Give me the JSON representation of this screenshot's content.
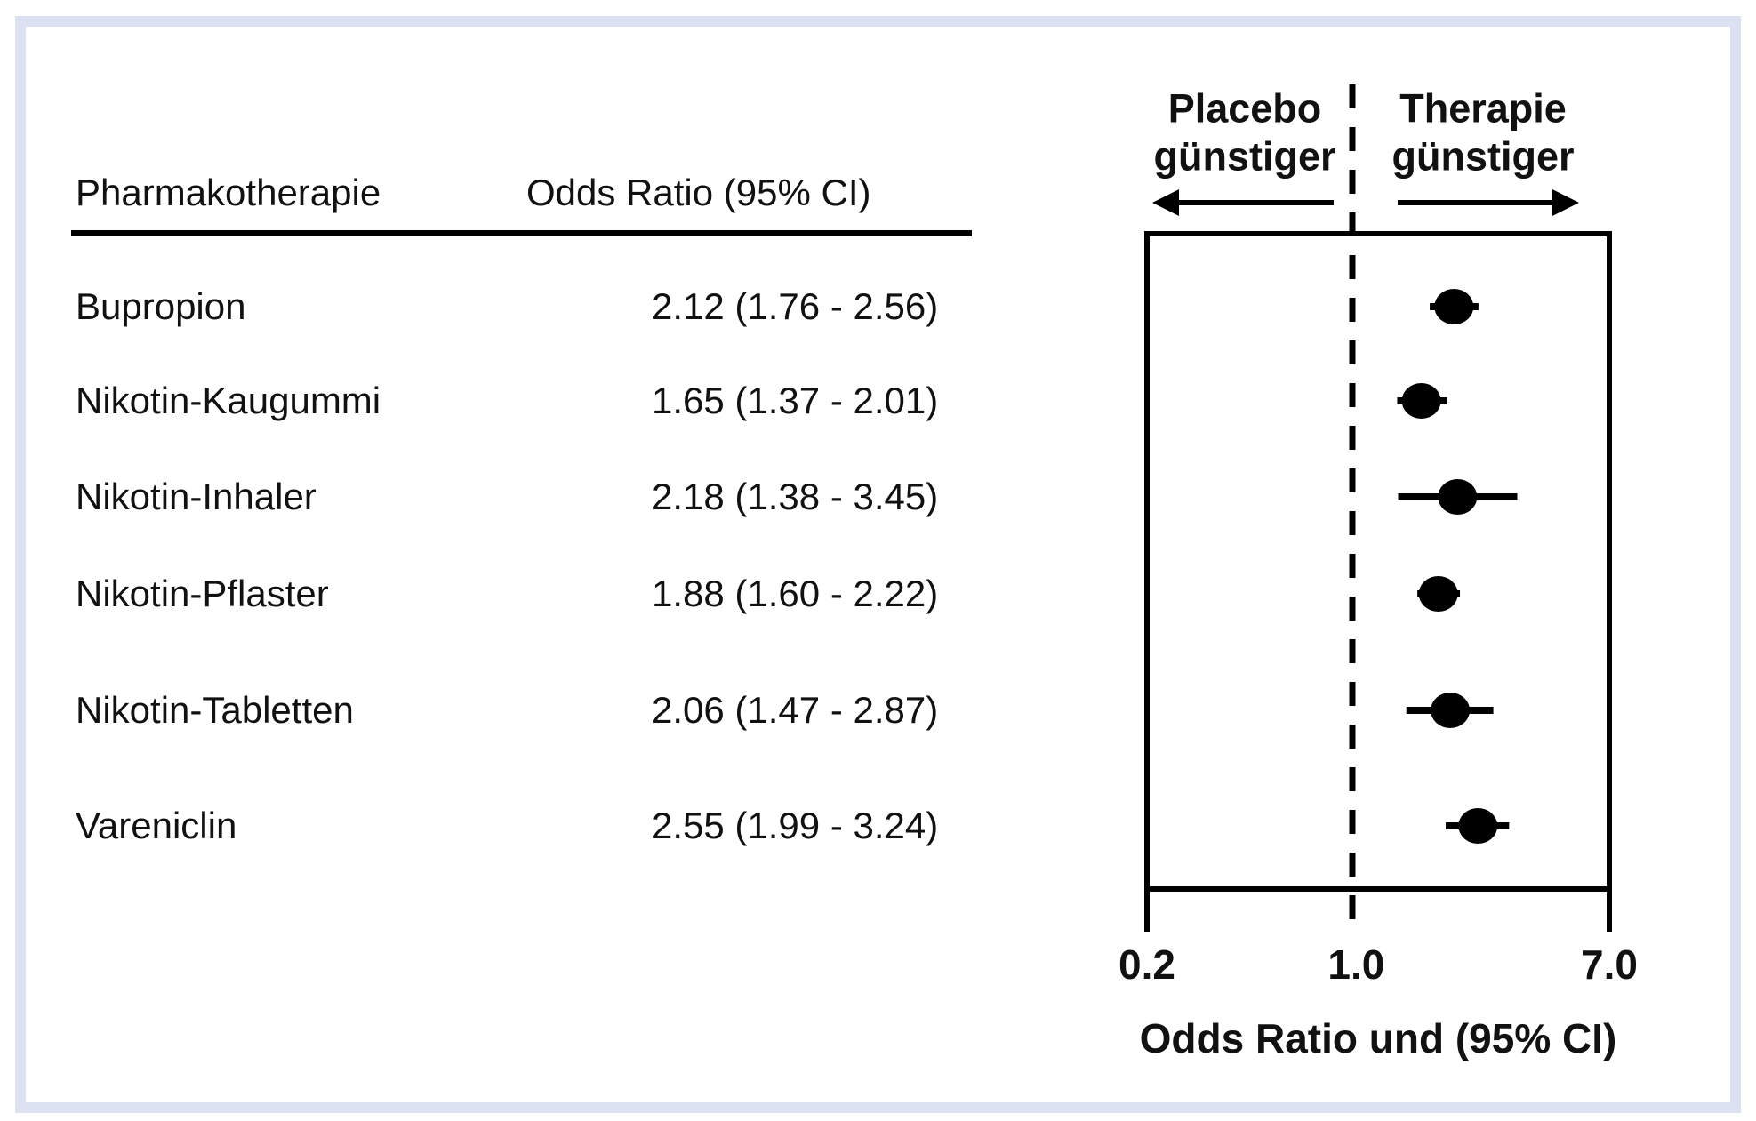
{
  "colors": {
    "frame_border": "#dde2f2",
    "text": "#111111",
    "plot_ink": "#000000",
    "background": "#ffffff"
  },
  "chart_data": {
    "type": "forest",
    "x_scale": "log",
    "x_range": [
      0.2,
      7.0
    ],
    "x_tick_values": [
      0.2,
      1.0,
      7.0
    ],
    "x_tick_labels": [
      "0.2",
      "1.0",
      "7.0"
    ],
    "reference_line": 1.0,
    "x_axis_title": "Odds Ratio und (95% CI)",
    "column_headers": {
      "treatment": "Pharmakotherapie",
      "odds_ratio": "Odds Ratio (95% CI)"
    },
    "direction_labels": {
      "left": [
        "Placebo",
        "günstiger"
      ],
      "right": [
        "Therapie",
        "günstiger"
      ]
    },
    "rows": [
      {
        "label": "Bupropion",
        "or": 2.12,
        "ci_low": 1.76,
        "ci_high": 2.56,
        "display": "2.12 (1.76 - 2.56)"
      },
      {
        "label": "Nikotin-Kaugummi",
        "or": 1.65,
        "ci_low": 1.37,
        "ci_high": 2.01,
        "display": "1.65 (1.37 - 2.01)"
      },
      {
        "label": "Nikotin-Inhaler",
        "or": 2.18,
        "ci_low": 1.38,
        "ci_high": 3.45,
        "display": "2.18 (1.38 - 3.45)"
      },
      {
        "label": "Nikotin-Pflaster",
        "or": 1.88,
        "ci_low": 1.6,
        "ci_high": 2.22,
        "display": "1.88 (1.60 - 2.22)"
      },
      {
        "label": "Nikotin-Tabletten",
        "or": 2.06,
        "ci_low": 1.47,
        "ci_high": 2.87,
        "display": "2.06 (1.47 - 2.87)"
      },
      {
        "label": "Vareniclin",
        "or": 2.55,
        "ci_low": 1.99,
        "ci_high": 3.24,
        "display": "2.55 (1.99 - 3.24)"
      }
    ]
  }
}
